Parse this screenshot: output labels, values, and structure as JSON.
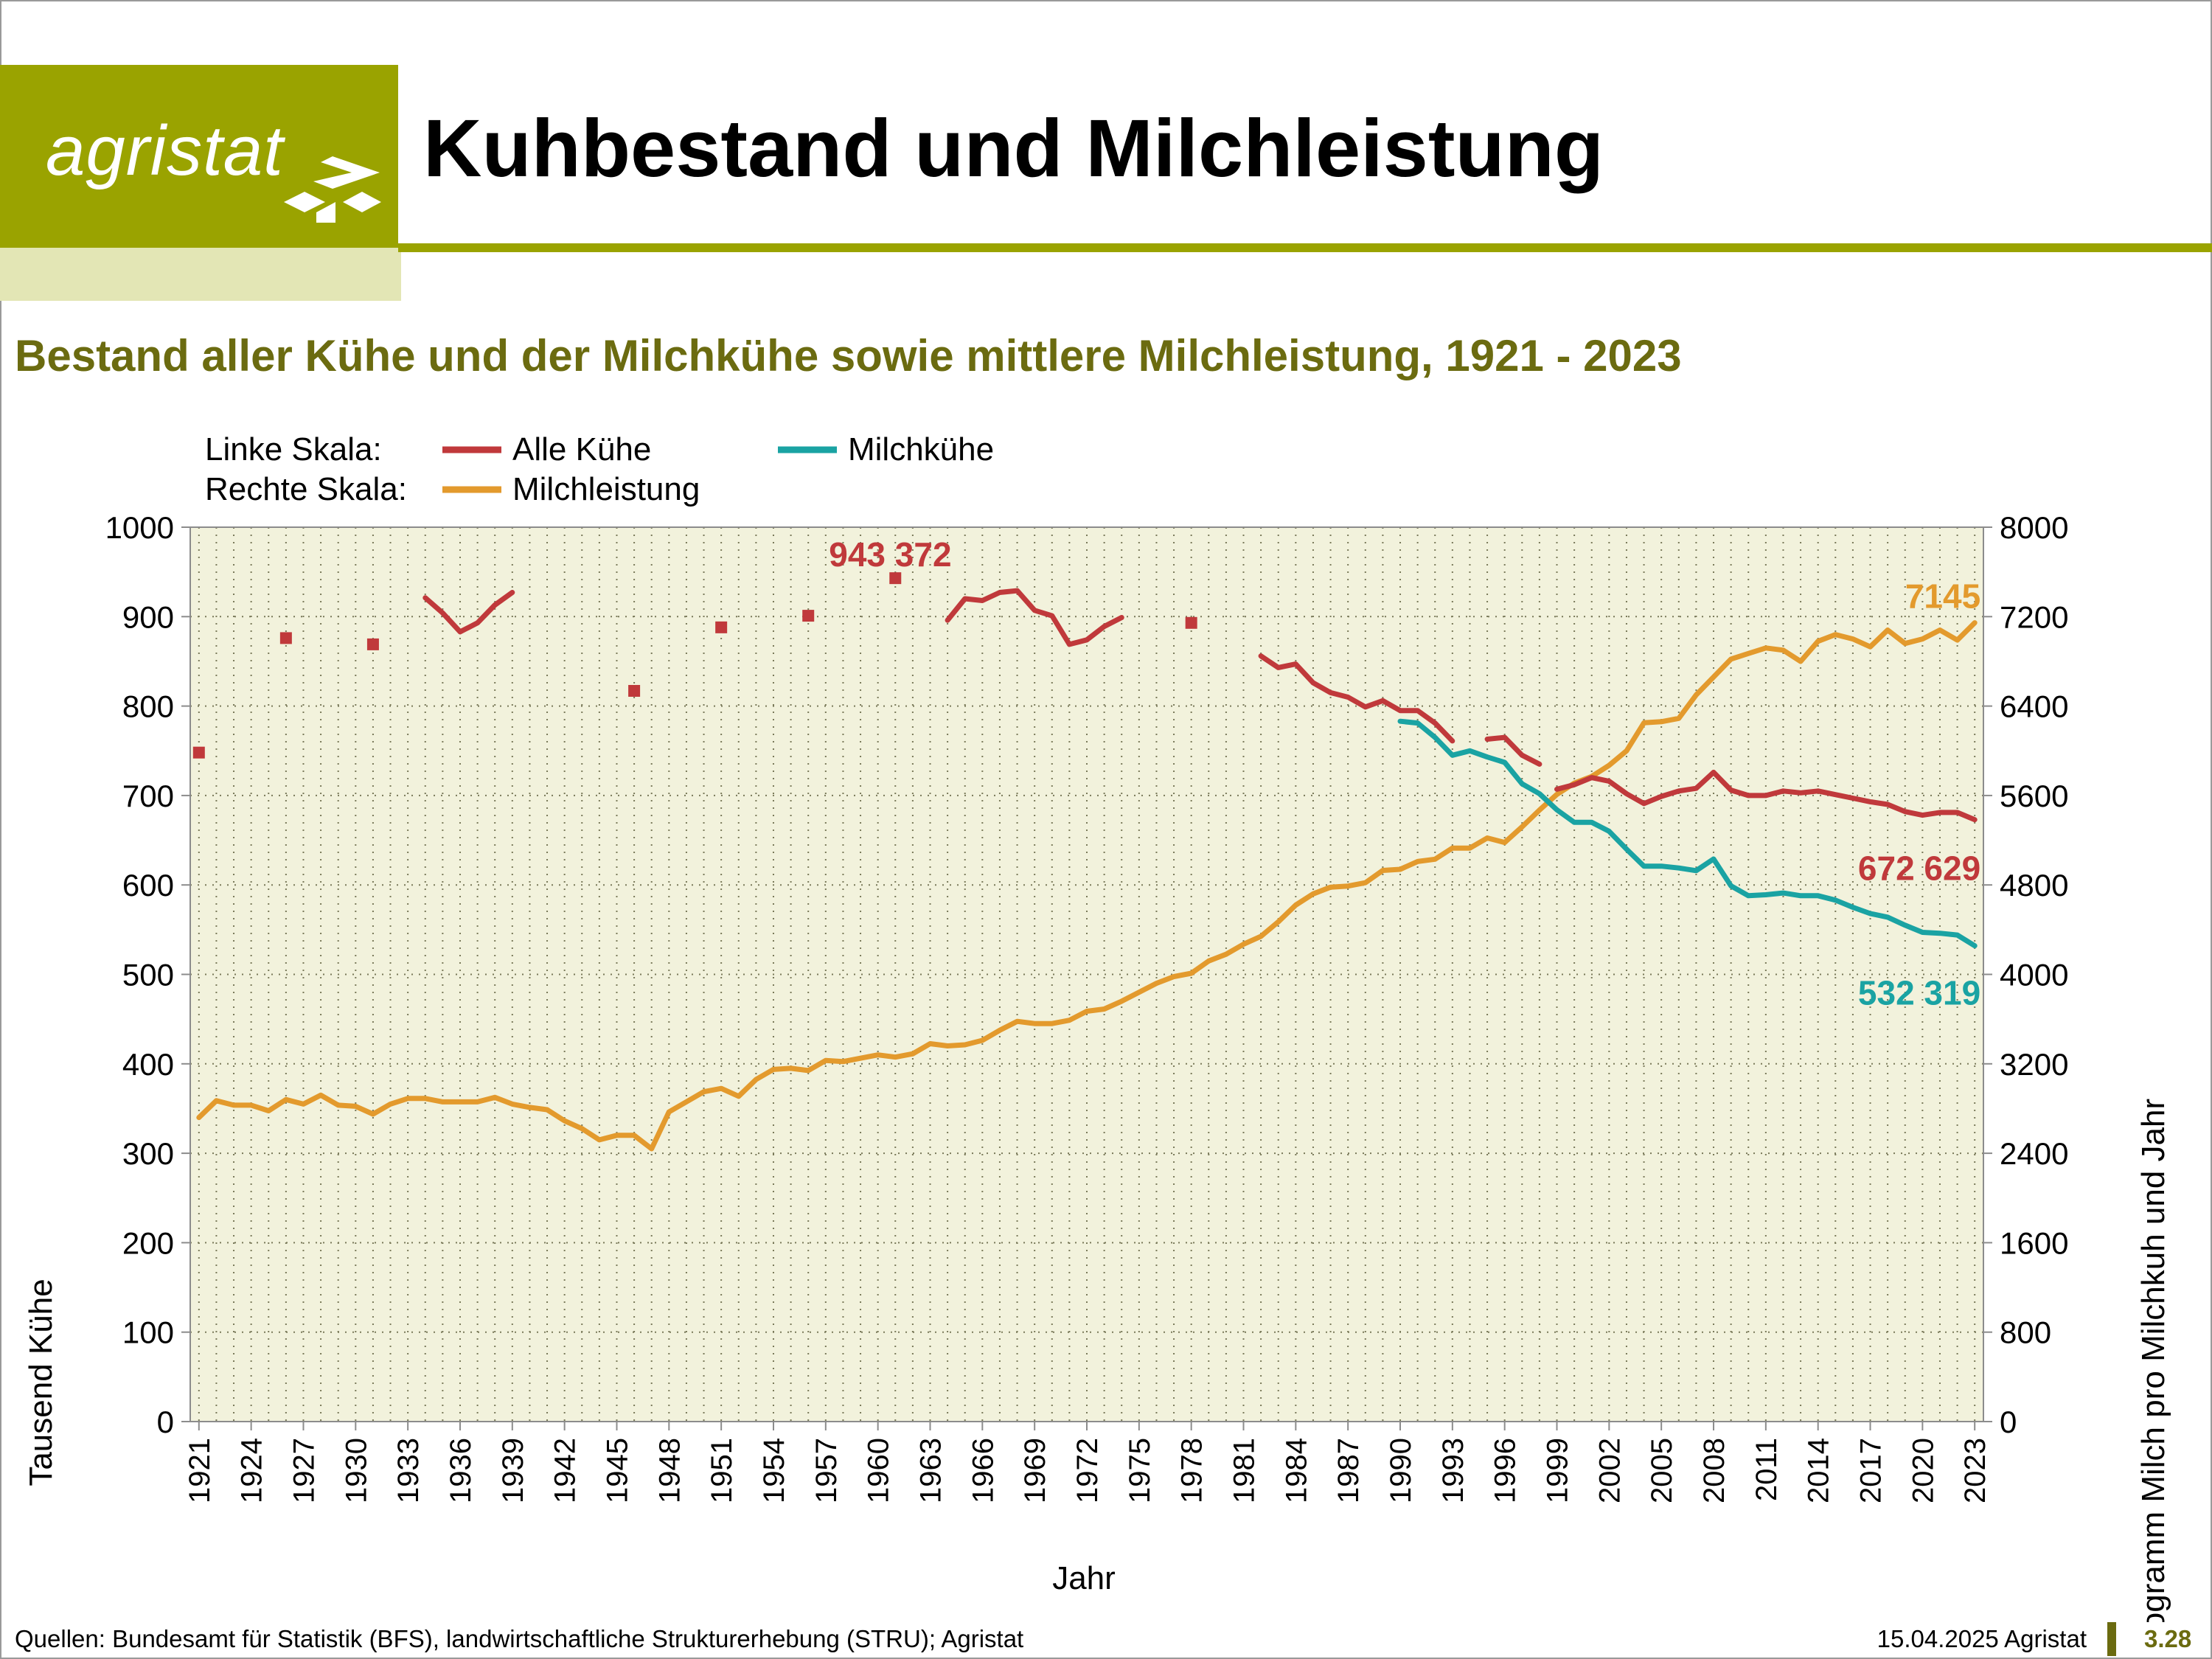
{
  "header": {
    "logo_text": "agristat",
    "title": "Kuhbestand und Milchleistung",
    "subtitle": "Bestand aller Kühe und der Milchkühe sowie mittlere Milchleistung, 1921 - 2023"
  },
  "footer": {
    "sources": "Quellen: Bundesamt für Statistik (BFS), landwirtschaftliche Strukturerhebung (STRU); Agristat",
    "date": "15.04.2025 Agristat",
    "page": "3.28"
  },
  "colors": {
    "brand": "#9aa300",
    "brand_light": "#e3e6b5",
    "subtitle": "#6b6b10",
    "plot_bg": "#f2f2dc",
    "alle_kuehe": "#c0393b",
    "milchkuehe": "#1aa3a3",
    "milchleistung": "#e39a2d"
  },
  "chart_data": {
    "type": "line",
    "xlabel": "Jahr",
    "ylabel": "Tausend Kühe",
    "y2label": "Kilogramm Milch pro Milchkuh und Jahr",
    "xlim": [
      1921,
      2023
    ],
    "ylim": [
      0,
      1000
    ],
    "y2lim": [
      0,
      8000
    ],
    "grid": true,
    "x_ticks": [
      1921,
      1924,
      1927,
      1930,
      1933,
      1936,
      1939,
      1942,
      1945,
      1948,
      1951,
      1954,
      1957,
      1960,
      1963,
      1966,
      1969,
      1972,
      1975,
      1978,
      1981,
      1984,
      1987,
      1990,
      1993,
      1996,
      1999,
      2002,
      2005,
      2008,
      2011,
      2014,
      2017,
      2020,
      2023
    ],
    "y_ticks": [
      0,
      100,
      200,
      300,
      400,
      500,
      600,
      700,
      800,
      900,
      1000
    ],
    "y2_ticks": [
      0,
      800,
      1600,
      2400,
      3200,
      4000,
      4800,
      5600,
      6400,
      7200,
      8000
    ],
    "legend": {
      "left_label": "Linke Skala:",
      "right_label": "Rechte Skala:",
      "placement": "top-left"
    },
    "series": [
      {
        "name": "Alle Kühe",
        "axis": "left",
        "markers": [
          [
            1921,
            748
          ],
          [
            1926,
            876
          ],
          [
            1931,
            869
          ],
          [
            1946,
            817
          ],
          [
            1951,
            888
          ],
          [
            1956,
            901
          ],
          [
            1961,
            943
          ],
          [
            1978,
            893
          ]
        ],
        "segments": [
          [
            [
              1934,
              921
            ],
            [
              1935,
              904
            ],
            [
              1936,
              883
            ],
            [
              1937,
              893
            ],
            [
              1938,
              913
            ],
            [
              1939,
              927
            ]
          ],
          [
            [
              1964,
              896
            ],
            [
              1965,
              920
            ],
            [
              1966,
              918
            ],
            [
              1967,
              927
            ],
            [
              1968,
              929
            ],
            [
              1969,
              907
            ],
            [
              1970,
              901
            ],
            [
              1971,
              869
            ],
            [
              1972,
              874
            ],
            [
              1973,
              889
            ],
            [
              1974,
              899
            ]
          ],
          [
            [
              1982,
              856
            ],
            [
              1983,
              843
            ],
            [
              1984,
              847
            ],
            [
              1985,
              826
            ],
            [
              1986,
              815
            ],
            [
              1987,
              810
            ],
            [
              1988,
              799
            ],
            [
              1989,
              806
            ],
            [
              1990,
              795
            ],
            [
              1991,
              795
            ],
            [
              1992,
              781
            ],
            [
              1993,
              761
            ]
          ],
          [
            [
              1995,
              763
            ],
            [
              1996,
              765
            ],
            [
              1997,
              745
            ],
            [
              1998,
              735
            ]
          ],
          [
            [
              1999,
              707
            ],
            [
              2000,
              712
            ],
            [
              2001,
              720
            ],
            [
              2002,
              716
            ],
            [
              2003,
              702
            ],
            [
              2004,
              691
            ],
            [
              2005,
              699
            ],
            [
              2006,
              705
            ],
            [
              2007,
              708
            ],
            [
              2008,
              726
            ],
            [
              2009,
              706
            ],
            [
              2010,
              700
            ],
            [
              2011,
              700
            ],
            [
              2012,
              705
            ],
            [
              2013,
              703
            ],
            [
              2014,
              705
            ],
            [
              2015,
              701
            ],
            [
              2016,
              697
            ],
            [
              2017,
              693
            ],
            [
              2018,
              690
            ],
            [
              2019,
              682
            ],
            [
              2020,
              678
            ],
            [
              2021,
              681
            ],
            [
              2022,
              681
            ],
            [
              2023,
              673
            ]
          ]
        ]
      },
      {
        "name": "Milchkühe",
        "axis": "left",
        "segments": [
          [
            [
              1990,
              783
            ],
            [
              1991,
              781
            ],
            [
              1992,
              765
            ],
            [
              1993,
              745
            ],
            [
              1994,
              750
            ],
            [
              1995,
              743
            ],
            [
              1996,
              737
            ],
            [
              1997,
              713
            ],
            [
              1998,
              702
            ],
            [
              1999,
              684
            ],
            [
              2000,
              670
            ],
            [
              2001,
              670
            ],
            [
              2002,
              660
            ],
            [
              2003,
              640
            ],
            [
              2004,
              621
            ],
            [
              2005,
              621
            ],
            [
              2006,
              619
            ],
            [
              2007,
              616
            ],
            [
              2008,
              629
            ],
            [
              2009,
              599
            ],
            [
              2010,
              588
            ],
            [
              2011,
              589
            ],
            [
              2012,
              591
            ],
            [
              2013,
              588
            ],
            [
              2014,
              588
            ],
            [
              2015,
              583
            ],
            [
              2016,
              575
            ],
            [
              2017,
              568
            ],
            [
              2018,
              564
            ],
            [
              2019,
              555
            ],
            [
              2020,
              547
            ],
            [
              2021,
              546
            ],
            [
              2022,
              544
            ],
            [
              2023,
              532
            ]
          ]
        ]
      },
      {
        "name": "Milchleistung",
        "axis": "right",
        "segments": [
          [
            [
              1921,
              2720
            ],
            [
              1922,
              2870
            ],
            [
              1923,
              2830
            ],
            [
              1924,
              2830
            ],
            [
              1925,
              2780
            ],
            [
              1926,
              2880
            ],
            [
              1927,
              2840
            ],
            [
              1928,
              2920
            ],
            [
              1929,
              2830
            ],
            [
              1930,
              2820
            ],
            [
              1931,
              2750
            ],
            [
              1932,
              2840
            ],
            [
              1933,
              2890
            ],
            [
              1934,
              2890
            ],
            [
              1935,
              2860
            ],
            [
              1936,
              2860
            ],
            [
              1937,
              2860
            ],
            [
              1938,
              2900
            ],
            [
              1939,
              2840
            ],
            [
              1940,
              2810
            ],
            [
              1941,
              2790
            ],
            [
              1942,
              2690
            ],
            [
              1943,
              2620
            ],
            [
              1944,
              2520
            ],
            [
              1945,
              2560
            ],
            [
              1946,
              2560
            ],
            [
              1947,
              2440
            ],
            [
              1948,
              2770
            ],
            [
              1949,
              2860
            ],
            [
              1950,
              2950
            ],
            [
              1951,
              2980
            ],
            [
              1952,
              2910
            ],
            [
              1953,
              3060
            ],
            [
              1954,
              3150
            ],
            [
              1955,
              3160
            ],
            [
              1956,
              3140
            ],
            [
              1957,
              3230
            ],
            [
              1958,
              3220
            ],
            [
              1959,
              3250
            ],
            [
              1960,
              3280
            ],
            [
              1961,
              3260
            ],
            [
              1962,
              3290
            ],
            [
              1963,
              3380
            ],
            [
              1964,
              3360
            ],
            [
              1965,
              3370
            ],
            [
              1966,
              3410
            ],
            [
              1967,
              3500
            ],
            [
              1968,
              3580
            ],
            [
              1969,
              3560
            ],
            [
              1970,
              3560
            ],
            [
              1971,
              3590
            ],
            [
              1972,
              3670
            ],
            [
              1973,
              3690
            ],
            [
              1974,
              3760
            ],
            [
              1975,
              3840
            ],
            [
              1976,
              3920
            ],
            [
              1977,
              3980
            ],
            [
              1978,
              4010
            ],
            [
              1979,
              4120
            ],
            [
              1980,
              4180
            ],
            [
              1981,
              4270
            ],
            [
              1982,
              4340
            ],
            [
              1983,
              4470
            ],
            [
              1984,
              4620
            ],
            [
              1985,
              4720
            ],
            [
              1986,
              4780
            ],
            [
              1987,
              4790
            ],
            [
              1988,
              4820
            ],
            [
              1989,
              4930
            ],
            [
              1990,
              4940
            ],
            [
              1991,
              5010
            ],
            [
              1992,
              5030
            ],
            [
              1993,
              5130
            ],
            [
              1994,
              5130
            ],
            [
              1995,
              5220
            ],
            [
              1996,
              5180
            ],
            [
              1997,
              5320
            ],
            [
              1998,
              5470
            ],
            [
              1999,
              5610
            ],
            [
              2000,
              5710
            ],
            [
              2001,
              5770
            ],
            [
              2002,
              5870
            ],
            [
              2003,
              6000
            ],
            [
              2004,
              6250
            ],
            [
              2005,
              6260
            ],
            [
              2006,
              6290
            ],
            [
              2007,
              6500
            ],
            [
              2008,
              6660
            ],
            [
              2009,
              6820
            ],
            [
              2010,
              6870
            ],
            [
              2011,
              6920
            ],
            [
              2012,
              6900
            ],
            [
              2013,
              6800
            ],
            [
              2014,
              6980
            ],
            [
              2015,
              7040
            ],
            [
              2016,
              7000
            ],
            [
              2017,
              6930
            ],
            [
              2018,
              7080
            ],
            [
              2019,
              6960
            ],
            [
              2020,
              7000
            ],
            [
              2021,
              7080
            ],
            [
              2022,
              6990
            ],
            [
              2023,
              7145
            ]
          ]
        ]
      }
    ],
    "annotations": [
      {
        "text": "943 372",
        "series": "Alle Kühe",
        "x": 1961,
        "y": 943
      },
      {
        "text": "7145",
        "series": "Milchleistung",
        "x": 2023,
        "y2": 7145
      },
      {
        "text": "672 629",
        "series": "Alle Kühe",
        "x": 2023,
        "y": 673
      },
      {
        "text": "532 319",
        "series": "Milchkühe",
        "x": 2023,
        "y": 532
      }
    ]
  }
}
